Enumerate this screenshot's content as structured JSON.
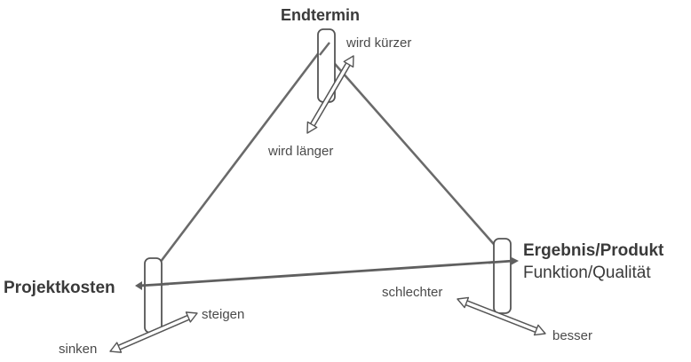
{
  "diagram": {
    "top": {
      "title": "Endtermin",
      "up_label": "wird kürzer",
      "down_label": "wird länger"
    },
    "left": {
      "title": "Projektkosten",
      "up_label": "steigen",
      "down_label": "sinken"
    },
    "right": {
      "title": "Ergebnis/Produkt",
      "subtitle": "Funktion/Qualität",
      "up_label": "schlechter",
      "down_label": "besser"
    }
  }
}
